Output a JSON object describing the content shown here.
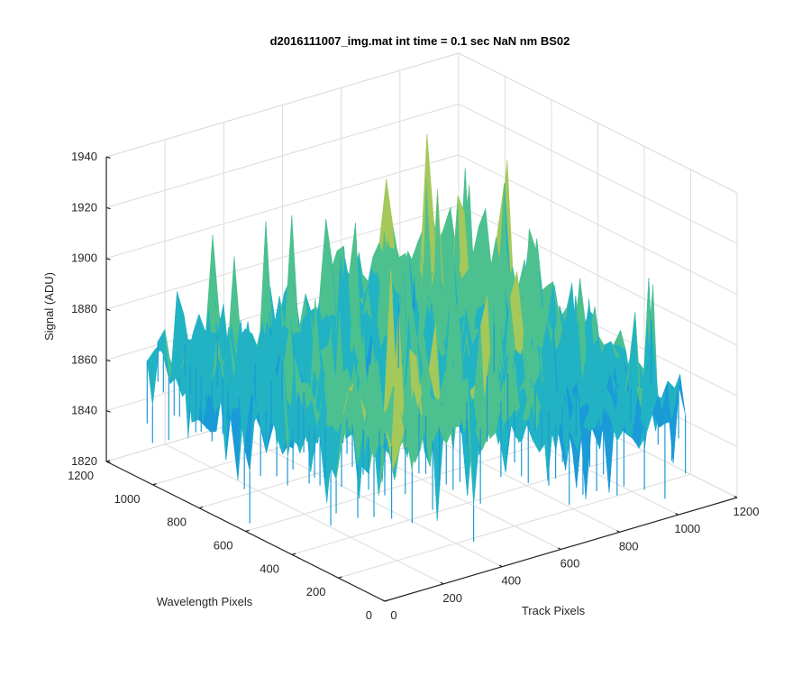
{
  "chart_data": {
    "type": "surface",
    "title": "d2016111007_img.mat int time = 0.1 sec  NaN nm BS02",
    "xlabel": "Track Pixels",
    "ylabel": "Wavelength Pixels",
    "zlabel": "Signal (ADU)",
    "xlim": [
      0,
      1200
    ],
    "ylim": [
      0,
      1200
    ],
    "zlim": [
      1820,
      1940
    ],
    "xticks": [
      0,
      200,
      400,
      600,
      800,
      1000,
      1200
    ],
    "yticks": [
      0,
      200,
      400,
      600,
      800,
      1000,
      1200
    ],
    "zticks": [
      1820,
      1840,
      1860,
      1880,
      1900,
      1920,
      1940
    ],
    "data_extent": {
      "x": [
        0,
        1024
      ],
      "y": [
        0,
        1024
      ]
    },
    "surface_stats": {
      "mean": 1873,
      "min": 1830,
      "max": 1935
    },
    "colormap": [
      "#0072bd",
      "#1a9ad6",
      "#21b3c4",
      "#4cc08f",
      "#a5c85a",
      "#e3cf3c"
    ],
    "grid": true
  }
}
